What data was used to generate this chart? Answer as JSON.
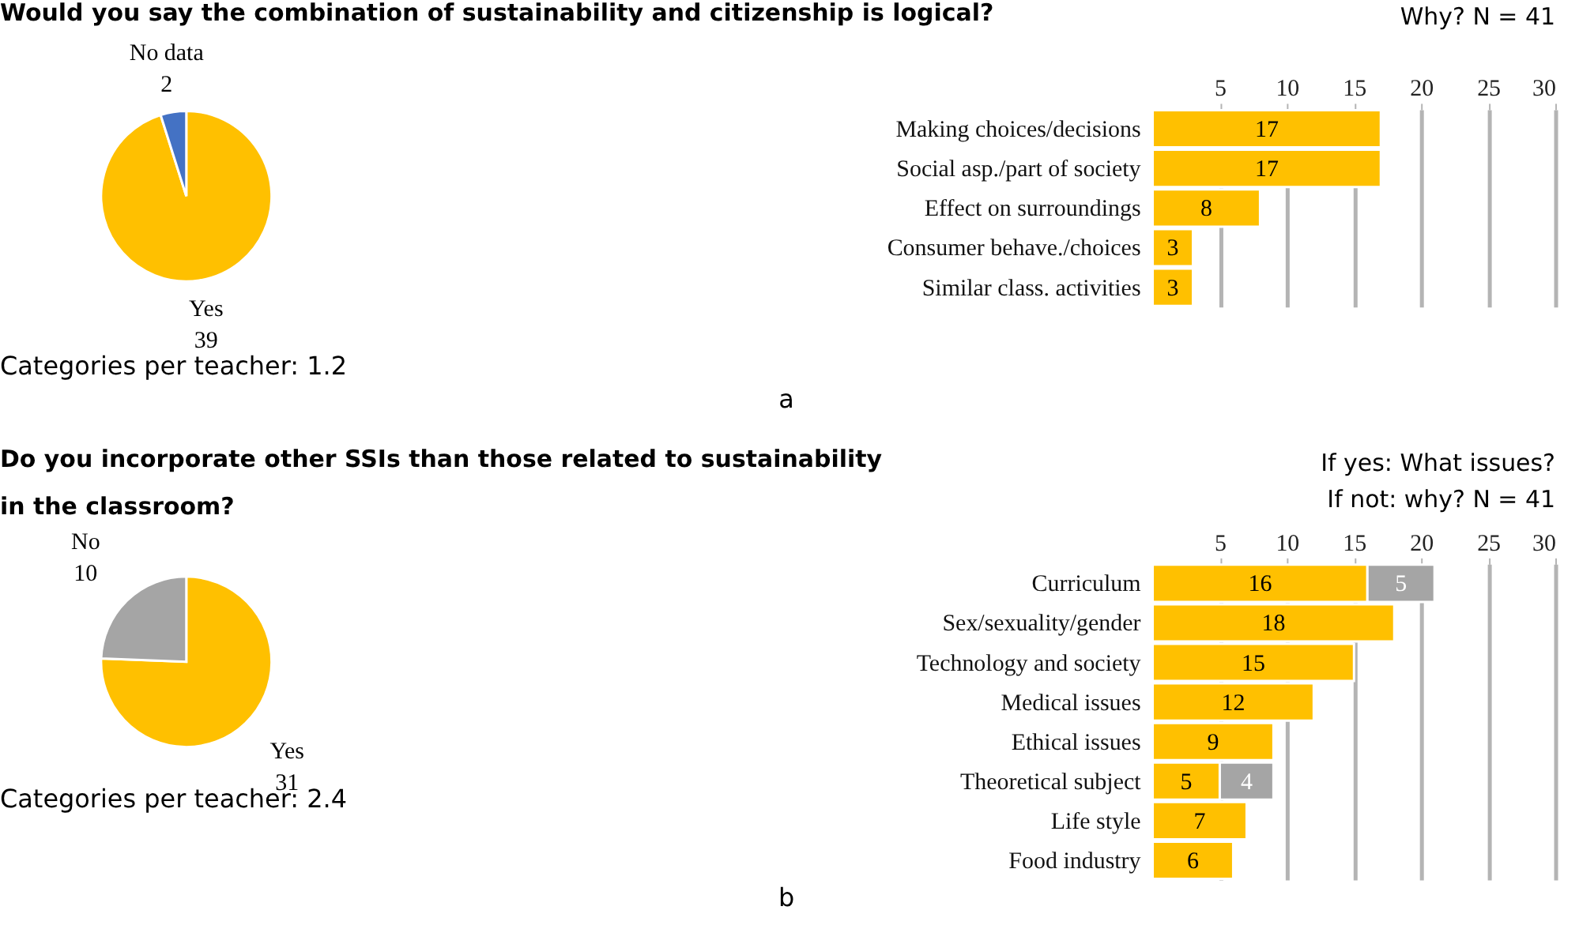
{
  "chart_data": [
    {
      "type": "pie",
      "title": "Would you say the combination of sustainability and citizenship is logical?",
      "categories": [
        "Yes",
        "No data"
      ],
      "values": [
        39,
        2
      ],
      "colors": [
        "#ffc000",
        "#4472c4"
      ],
      "data_labels": true,
      "annotations": [
        "Categories per teacher: 1.2",
        "a"
      ]
    },
    {
      "type": "bar",
      "orientation": "horizontal",
      "title": "Why? N = 41",
      "categories": [
        "Making choices/decisions",
        "Social asp./part of society",
        "Effect on surroundings",
        "Consumer behave./choices",
        "Similar class. activities"
      ],
      "series": [
        {
          "color": "#ffc000",
          "values": [
            17,
            17,
            8,
            3,
            3
          ]
        }
      ],
      "xlim": [
        0,
        30
      ],
      "xticks": [
        5,
        10,
        15,
        20,
        25,
        30
      ],
      "grid": "x",
      "data_labels": true
    },
    {
      "type": "pie",
      "title": "Do you incorporate other SSIs than those related to sustainability\nin the classroom?",
      "categories": [
        "Yes",
        "No"
      ],
      "values": [
        31,
        10
      ],
      "colors": [
        "#ffc000",
        "#a5a5a5"
      ],
      "data_labels": true,
      "annotations": [
        "Categories per teacher: 2.4",
        "b"
      ]
    },
    {
      "type": "bar",
      "orientation": "horizontal",
      "stacked": true,
      "title": "If yes: What issues?",
      "subtitle": "If not: why? N = 41",
      "categories": [
        "Curriculum",
        "Sex/sexuality/gender",
        "Technology and society",
        "Medical issues",
        "Ethical issues",
        "Theoretical subject",
        "Life style",
        "Food industry"
      ],
      "series": [
        {
          "color": "#ffc000",
          "values": [
            16,
            18,
            15,
            12,
            9,
            5,
            7,
            6
          ]
        },
        {
          "color": "#a5a5a5",
          "values": [
            5,
            null,
            null,
            null,
            null,
            4,
            null,
            null
          ]
        }
      ],
      "xlim": [
        0,
        30
      ],
      "xticks": [
        5,
        10,
        15,
        20,
        25,
        30
      ],
      "grid": "x",
      "data_labels": true
    }
  ]
}
